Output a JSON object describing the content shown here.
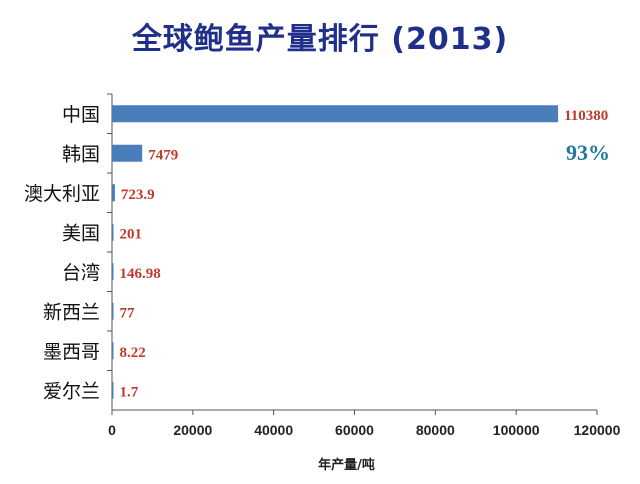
{
  "chart_data": {
    "type": "bar",
    "orientation": "horizontal",
    "title": "全球鲍鱼产量排行 (2013)",
    "xlabel": "年产量/吨",
    "ylabel": "",
    "xlim": [
      0,
      120000
    ],
    "xticks": [
      "0",
      "20000",
      "40000",
      "60000",
      "80000",
      "100000",
      "120000"
    ],
    "categories": [
      "中国",
      "韩国",
      "澳大利亚",
      "美国",
      "台湾",
      "新西兰",
      "墨西哥",
      "爱尔兰"
    ],
    "values": [
      110380,
      7479,
      723.9,
      201,
      146.98,
      77,
      8.22,
      1.7
    ],
    "value_labels": [
      "110380",
      "7479",
      "723.9",
      "201",
      "146.98",
      "77",
      "8.22",
      "1.7"
    ],
    "annotation": "93%",
    "grid": false,
    "colors": {
      "bar": "#4a7ebb",
      "value_label": "#c0392b",
      "annotation": "#1f7a9a",
      "title": "#1f2f8a",
      "axis": "#555555"
    }
  }
}
